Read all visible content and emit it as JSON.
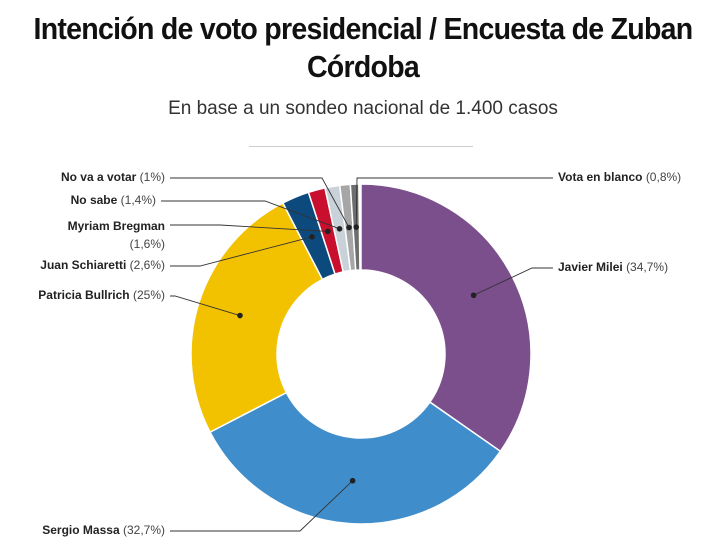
{
  "chart_data": {
    "type": "pie",
    "donut": true,
    "title": "Intención de voto presidencial / Encuesta de Zuban Córdoba",
    "subtitle": "En base a un sondeo nacional de 1.400 casos",
    "slices": [
      {
        "name": "Javier Milei",
        "value": 34.7,
        "value_label": "(34,7%)",
        "color": "#7b4e8c"
      },
      {
        "name": "Sergio Massa",
        "value": 32.7,
        "value_label": "(32,7%)",
        "color": "#3f8ecb"
      },
      {
        "name": "Patricia Bullrich",
        "value": 25,
        "value_label": "(25%)",
        "color": "#f2c100"
      },
      {
        "name": "Juan Schiaretti",
        "value": 2.6,
        "value_label": "(2,6%)",
        "color": "#0c4a7d"
      },
      {
        "name": "Myriam Bregman",
        "value": 1.6,
        "value_label": "(1,6%)",
        "color": "#c8102e"
      },
      {
        "name": "No sabe",
        "value": 1.4,
        "value_label": "(1,4%)",
        "color": "#c9d2d8"
      },
      {
        "name": "No va a votar",
        "value": 1,
        "value_label": "(1%)",
        "color": "#a6a6a6"
      },
      {
        "name": "Vota en blanco",
        "value": 0.8,
        "value_label": "(0,8%)",
        "color": "#6e6e6e"
      }
    ]
  }
}
